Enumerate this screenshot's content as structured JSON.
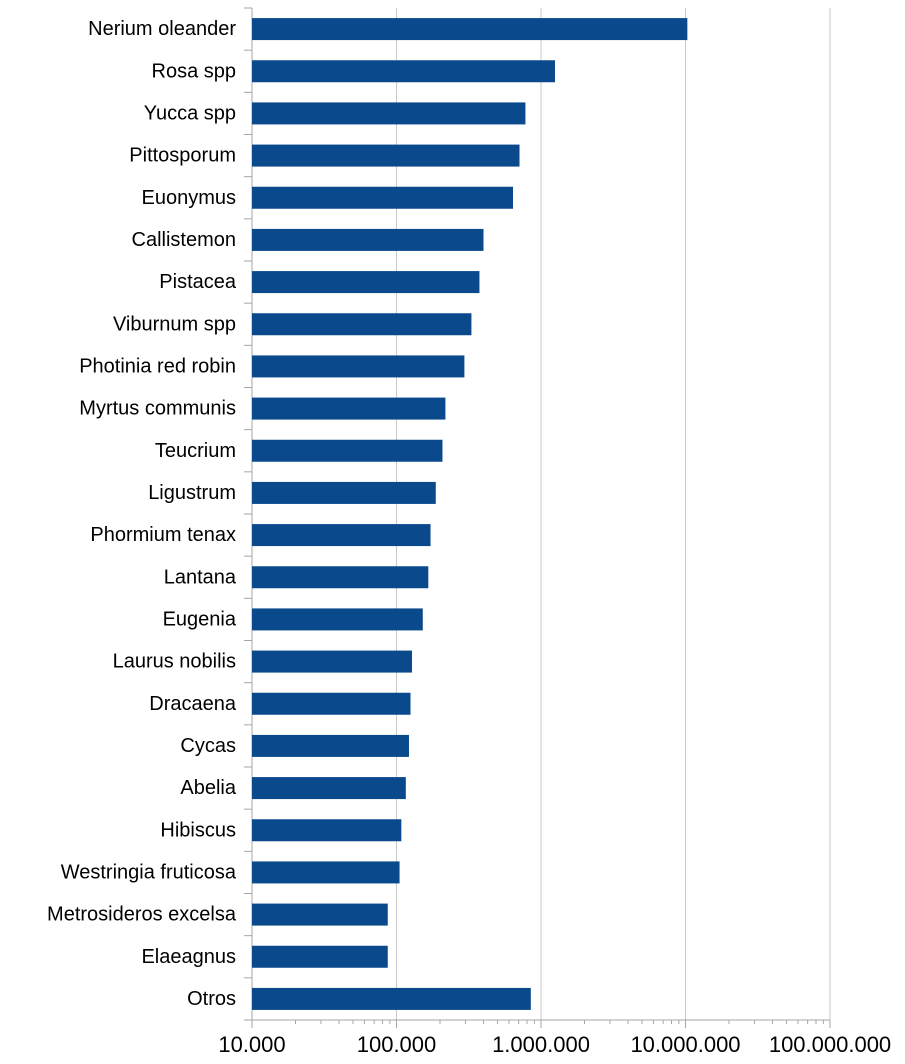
{
  "chart_data": {
    "type": "bar",
    "orientation": "horizontal",
    "x_scale": "log",
    "xlim": [
      10000,
      100000000
    ],
    "x_ticks": [
      "10.000",
      "100.000",
      "1.000.000",
      "10.000.000",
      "100.000.000"
    ],
    "x_tick_values": [
      10000,
      100000,
      1000000,
      10000000,
      100000000
    ],
    "grid": "vertical major gridlines",
    "legend": "none",
    "bar_color": "#0a4a8c",
    "categories": [
      "Nerium oleander",
      "Rosa spp",
      "Yucca spp",
      "Pittosporum",
      "Euonymus",
      "Callistemon",
      "Pistacea",
      "Viburnum spp",
      "Photinia red robin",
      "Myrtus communis",
      "Teucrium",
      "Ligustrum",
      "Phormium tenax",
      "Lantana",
      "Eugenia",
      "Laurus nobilis",
      "Dracaena",
      "Cycas",
      "Abelia",
      "Hibiscus",
      "Westringia fruticosa",
      "Metrosideros excelsa",
      "Elaeagnus",
      "Otros"
    ],
    "values": [
      10300000,
      1250000,
      780000,
      710000,
      640000,
      400000,
      375000,
      330000,
      295000,
      218000,
      208000,
      187000,
      172000,
      166000,
      152000,
      128000,
      125000,
      122000,
      116000,
      108000,
      105000,
      87000,
      87000,
      850000
    ]
  }
}
